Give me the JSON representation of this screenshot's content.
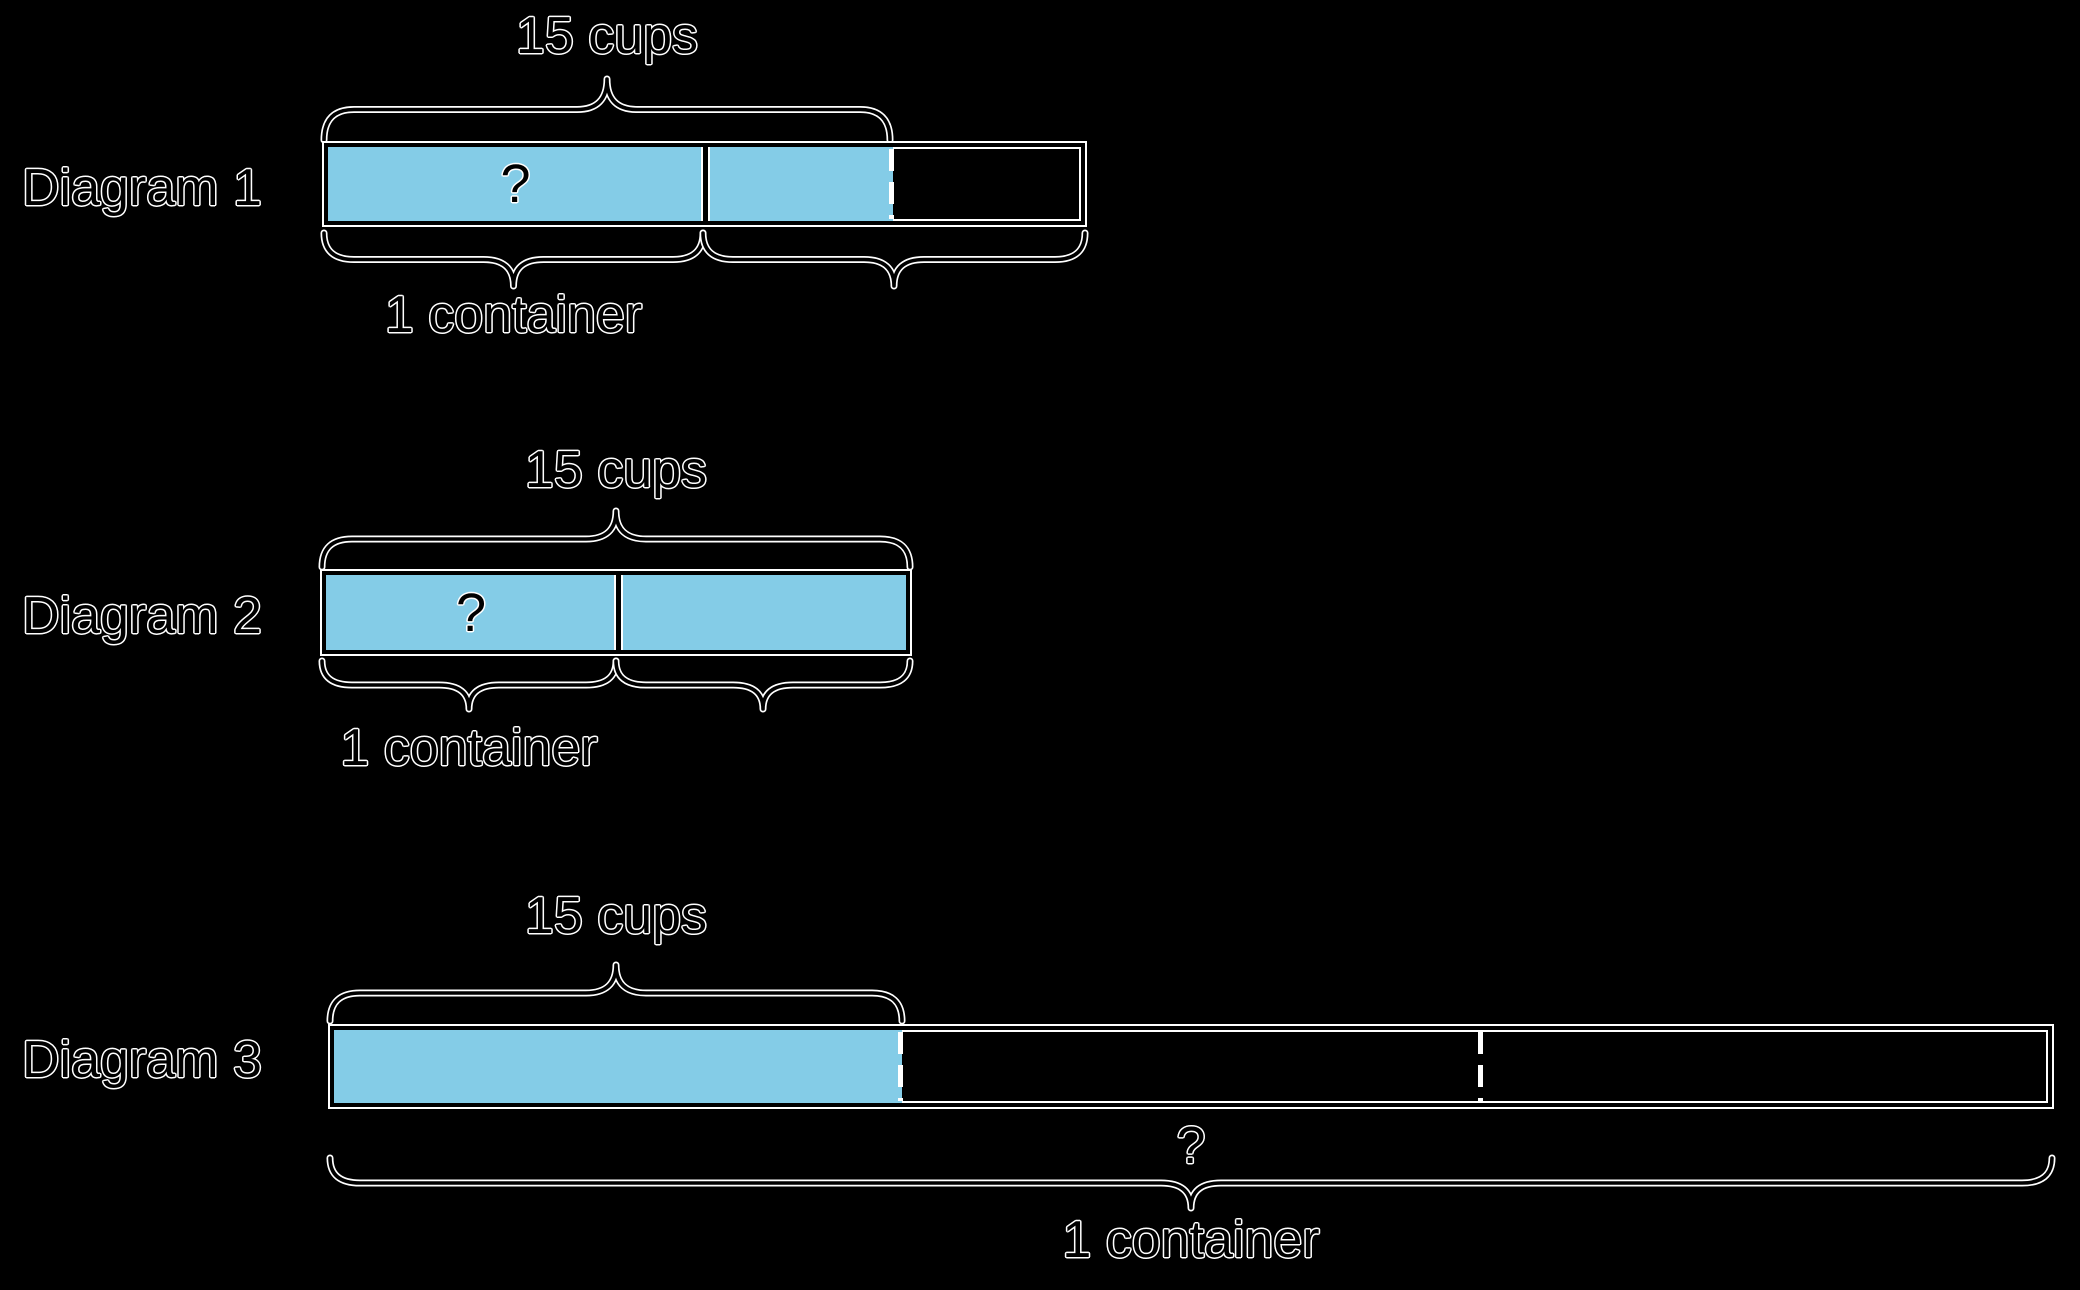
{
  "colors": {
    "background": "#000000",
    "bar_fill": "#84CCE7",
    "line": "#000000",
    "outline": "#FFFFFF",
    "text": "#000000"
  },
  "diagrams": [
    {
      "label": "Diagram 1",
      "amount_label": "15 cups",
      "question_mark": "?",
      "container_label": "1 container",
      "num_sections": 2,
      "shaded_sections": 1.5,
      "divider_style": "solid"
    },
    {
      "label": "Diagram 2",
      "amount_label": "15 cups",
      "question_mark": "?",
      "container_label": "1 container",
      "num_sections": 2,
      "shaded_sections": 2,
      "divider_style": "solid"
    },
    {
      "label": "Diagram 3",
      "amount_label": "15 cups",
      "question_mark": "?",
      "container_label": "1 container",
      "num_sections": 3,
      "shaded_sections": 1,
      "divider_style": "dashed"
    }
  ]
}
